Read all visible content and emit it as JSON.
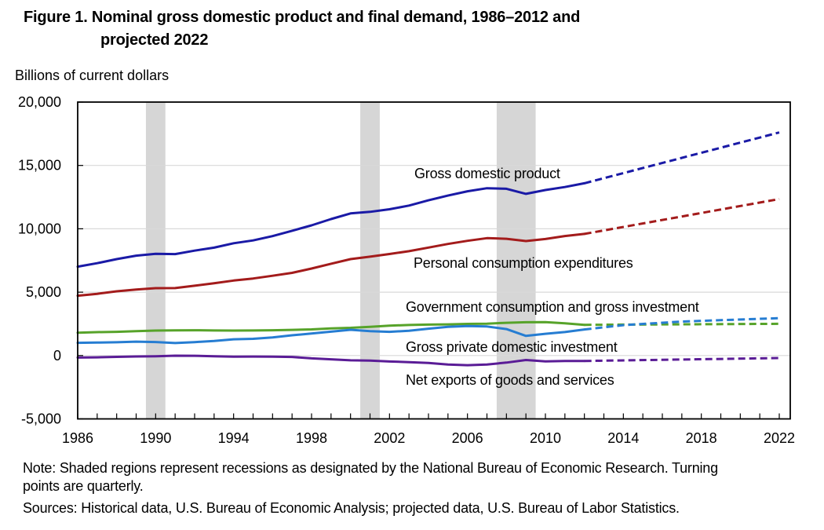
{
  "figure": {
    "title_line1": "Figure 1. Nominal gross domestic product and final demand, 1986–2012 and",
    "title_line2": "projected 2022",
    "units_label": "Billions of current dollars",
    "note_line1": "Note: Shaded regions represent recessions as designated by the National Bureau of Economic Research. Turning",
    "note_line2": "points are quarterly.",
    "sources": "Sources: Historical data, U.S. Bureau of Economic Analysis; projected data, U.S. Bureau of Labor Statistics."
  },
  "chart_data": {
    "type": "line",
    "title": "Figure 1. Nominal gross domestic product and final demand, 1986–2012 and projected 2022",
    "xlabel": "",
    "ylabel": "Billions of current dollars",
    "xlim": [
      1986,
      2022.56
    ],
    "ylim": [
      -5000,
      20000
    ],
    "grid": "horizontal",
    "legend_position": "inline-labels",
    "x_tick_labeled_years": [
      1986,
      1990,
      1994,
      1998,
      2002,
      2006,
      2010,
      2014,
      2018,
      2022
    ],
    "x_minor_tick_every": 1,
    "y_ticks": [
      {
        "value": 20000,
        "label": "20,000"
      },
      {
        "value": 15000,
        "label": "15,000"
      },
      {
        "value": 10000,
        "label": "10,000"
      },
      {
        "value": 5000,
        "label": "5,000"
      },
      {
        "value": 0,
        "label": "0"
      },
      {
        "value": -5000,
        "label": "-5,000"
      }
    ],
    "y_gridline_values": [
      15000,
      10000,
      5000,
      0
    ],
    "recessions": [
      [
        1989.5,
        1990.5
      ],
      [
        2000.5,
        2001.5
      ],
      [
        2007.5,
        2009.5
      ]
    ],
    "years": [
      1986,
      1987,
      1988,
      1989,
      1990,
      1991,
      1992,
      1993,
      1994,
      1995,
      1996,
      1997,
      1998,
      1999,
      2000,
      2001,
      2002,
      2003,
      2004,
      2005,
      2006,
      2007,
      2008,
      2009,
      2010,
      2011,
      2012
    ],
    "series": [
      {
        "id": "gdp",
        "label": "Gross domestic product",
        "color": "#1a1aa6",
        "values": [
          7013,
          7285,
          7610,
          7879,
          8027,
          8008,
          8280,
          8516,
          8863,
          9086,
          9426,
          9846,
          10275,
          10771,
          11216,
          11338,
          11543,
          11836,
          12247,
          12623,
          12959,
          13206,
          13162,
          12758,
          13063,
          13299,
          13593
        ],
        "projected": {
          "years": [
            2012,
            2022
          ],
          "values": [
            13593,
            17600
          ]
        }
      },
      {
        "id": "pce",
        "label": "Personal consumption expenditures",
        "color": "#a31b1b",
        "values": [
          4721,
          4871,
          5066,
          5210,
          5316,
          5324,
          5506,
          5701,
          5919,
          6079,
          6292,
          6523,
          6866,
          7240,
          7608,
          7802,
          8010,
          8233,
          8520,
          8803,
          9054,
          9262,
          9211,
          9032,
          9196,
          9429,
          9600
        ],
        "projected": {
          "years": [
            2012,
            2022
          ],
          "values": [
            9600,
            12350
          ]
        }
      },
      {
        "id": "gov",
        "label": "Government consumption and gross investment",
        "color": "#57a32a",
        "values": [
          1800,
          1848,
          1871,
          1922,
          1972,
          1990,
          1992,
          1974,
          1970,
          1977,
          1993,
          2027,
          2066,
          2142,
          2186,
          2266,
          2361,
          2410,
          2443,
          2457,
          2494,
          2518,
          2582,
          2624,
          2636,
          2544,
          2420
        ],
        "projected": {
          "years": [
            2012,
            2022
          ],
          "values": [
            2420,
            2500
          ]
        }
      },
      {
        "id": "inv",
        "label": "Gross private domestic investment",
        "color": "#267dd2",
        "values": [
          1003,
          1021,
          1044,
          1094,
          1064,
          984,
          1062,
          1152,
          1283,
          1317,
          1432,
          1596,
          1735,
          1884,
          2033,
          1919,
          1874,
          1958,
          2121,
          2268,
          2331,
          2295,
          2087,
          1549,
          1714,
          1850,
          2060
        ],
        "projected": {
          "years": [
            2012,
            2014,
            2017,
            2022
          ],
          "values": [
            2060,
            2400,
            2680,
            2950
          ]
        }
      },
      {
        "id": "net",
        "label": "Net exports of goods and services",
        "color": "#5a1c96",
        "values": [
          -158,
          -143,
          -104,
          -74,
          -54,
          -15,
          -20,
          -59,
          -87,
          -79,
          -89,
          -113,
          -221,
          -300,
          -379,
          -399,
          -471,
          -519,
          -590,
          -714,
          -762,
          -707,
          -557,
          -355,
          -458,
          -427,
          -430
        ],
        "projected": {
          "years": [
            2012,
            2022
          ],
          "values": [
            -430,
            -200
          ]
        }
      }
    ],
    "colors": {
      "recession_band": "#d6d6d6",
      "gridline": "#d9d9d9",
      "axis": "#000000",
      "text": "#000000"
    }
  }
}
